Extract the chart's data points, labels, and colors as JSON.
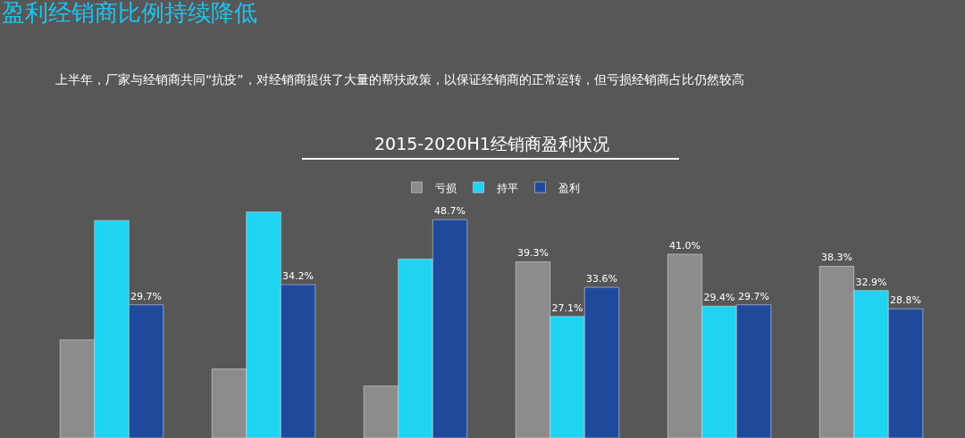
{
  "chart_data": {
    "type": "bar",
    "title": "2015-2020H1经销商盈利状况",
    "annotations": [
      "盈利经销商比例持续降低",
      "上半年，厂家与经销商共同“抗疫”，对经销商提供了大量的帮扶政策，以保证经销商的正常运转，但亏损经销商占比仍然较高"
    ],
    "categories": [
      null,
      null,
      null,
      null,
      null,
      null
    ],
    "legend": "top",
    "series": [
      {
        "name": "亏损",
        "color": "#8c8c8c",
        "values": [
          21.9,
          15.4,
          11.6,
          39.3,
          41.0,
          38.3
        ],
        "value_labels": [
          null,
          null,
          null,
          "39.3%",
          "41.0%",
          "38.3%"
        ]
      },
      {
        "name": "持平",
        "color": "#1fd3f2",
        "values": [
          48.5,
          50.4,
          39.9,
          27.1,
          29.4,
          32.9
        ],
        "value_labels": [
          null,
          null,
          null,
          "27.1%",
          "29.4%",
          "32.9%"
        ]
      },
      {
        "name": "盈利",
        "color": "#1f4a9c",
        "values": [
          29.7,
          34.2,
          48.7,
          33.6,
          29.7,
          28.8
        ],
        "value_labels": [
          "29.7%",
          "34.2%",
          "48.7%",
          "33.6%",
          "29.7%",
          "28.8%"
        ]
      }
    ]
  }
}
